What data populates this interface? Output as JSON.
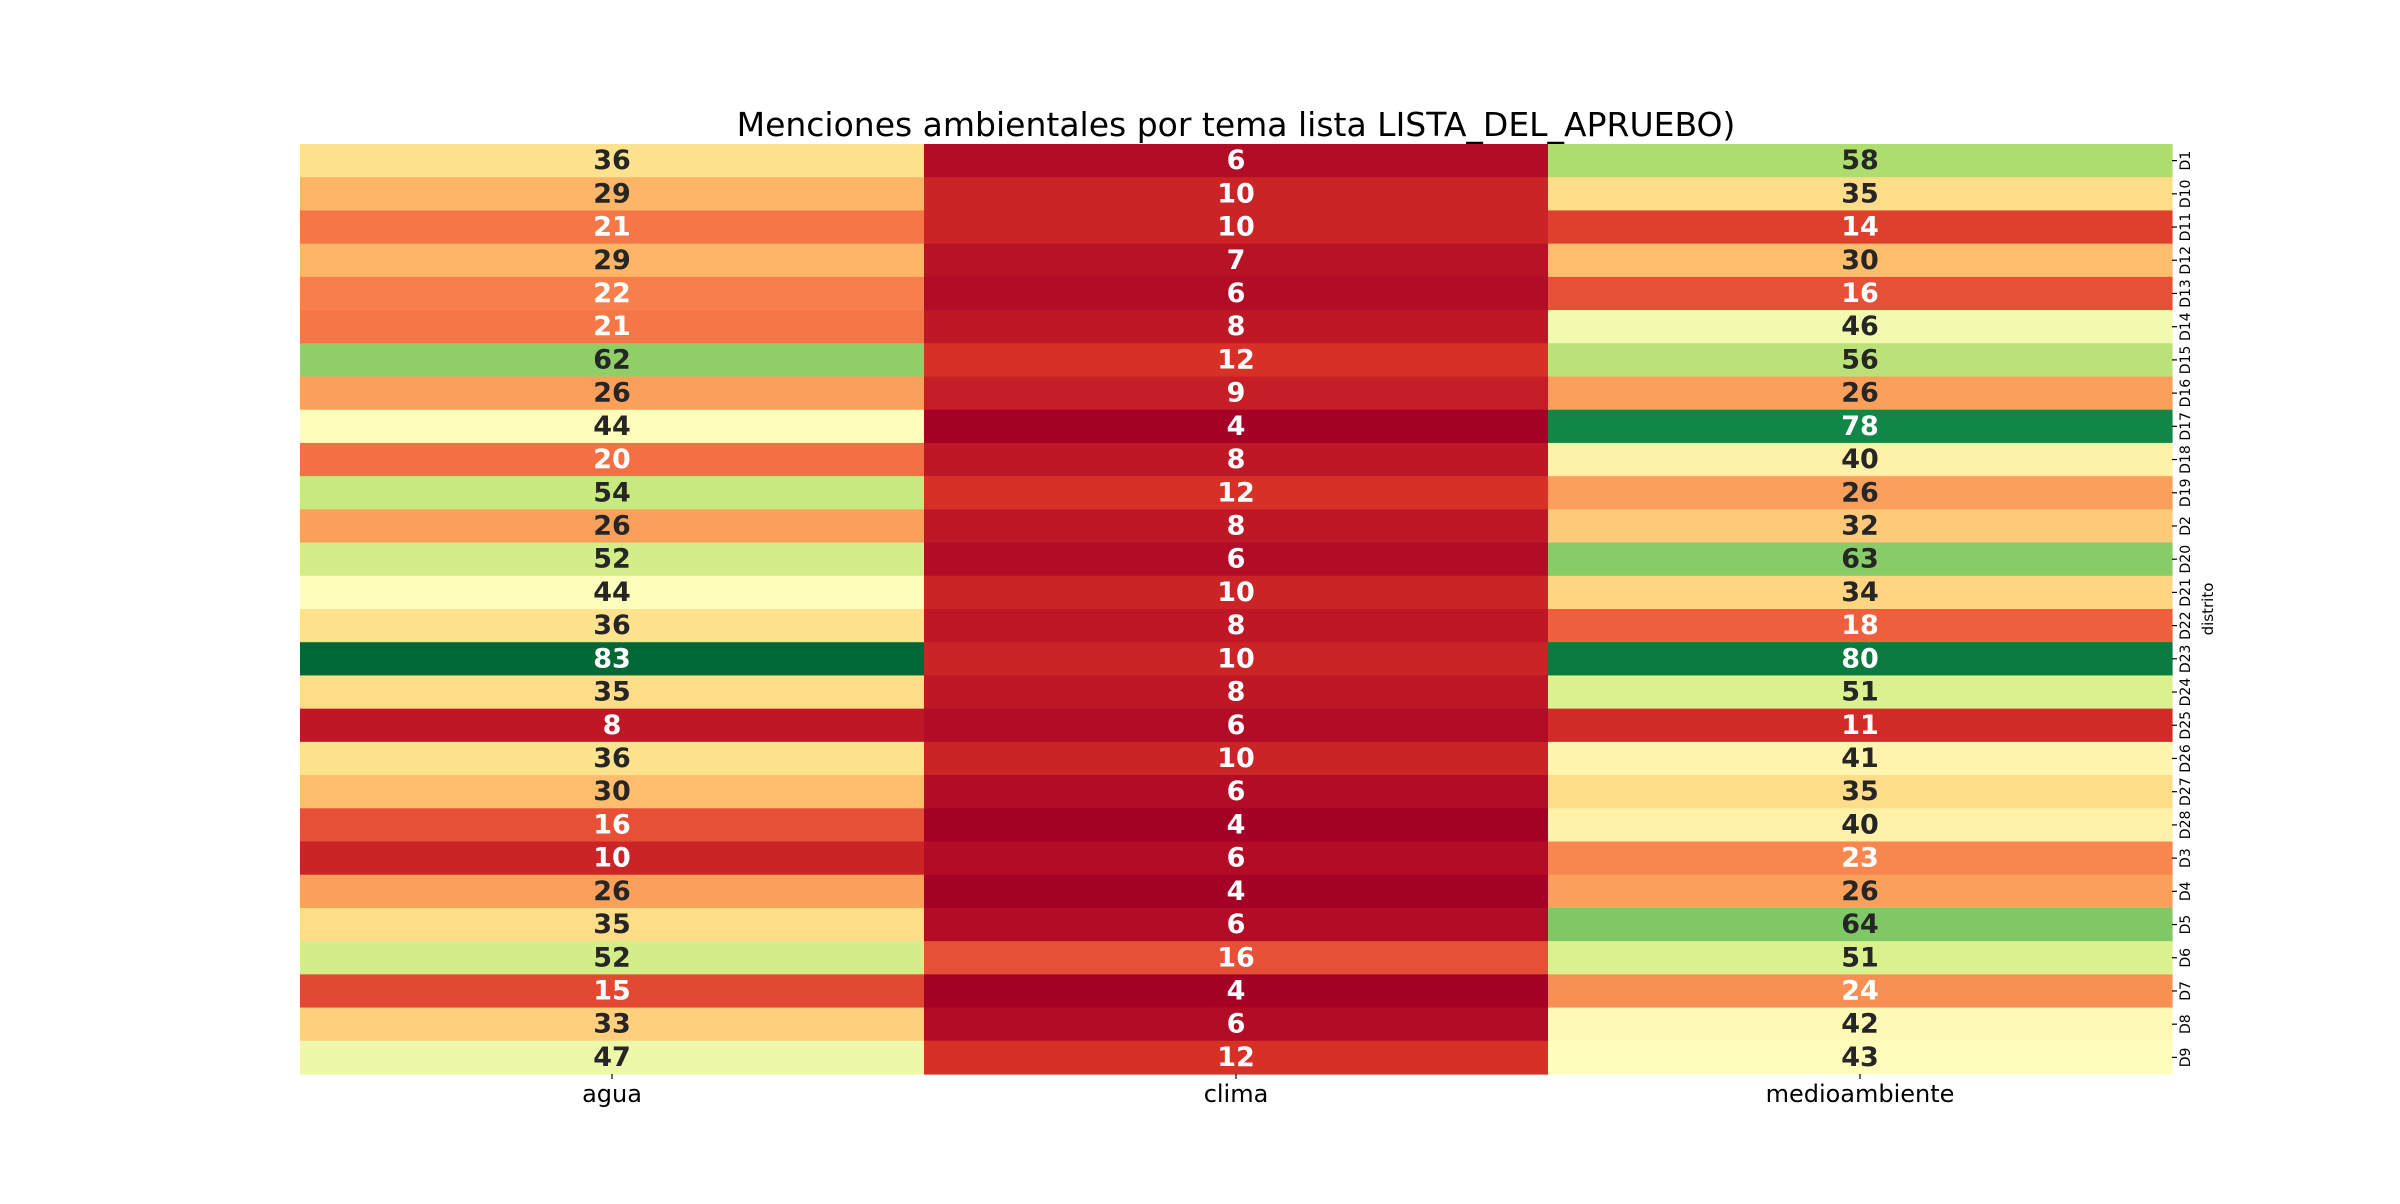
{
  "chart_data": {
    "type": "heatmap",
    "title": "Menciones ambientales por tema lista LISTA_DEL_APRUEBO)",
    "xlabel": "",
    "ylabel": "distrito",
    "x_categories": [
      "agua",
      "clima",
      "medioambiente"
    ],
    "y_categories": [
      "D1",
      "D10",
      "D11",
      "D12",
      "D13",
      "D14",
      "D15",
      "D16",
      "D17",
      "D18",
      "D19",
      "D2",
      "D20",
      "D21",
      "D22",
      "D23",
      "D24",
      "D25",
      "D26",
      "D27",
      "D28",
      "D3",
      "D4",
      "D5",
      "D6",
      "D7",
      "D8",
      "D9"
    ],
    "values": [
      [
        36,
        6,
        58
      ],
      [
        29,
        10,
        35
      ],
      [
        21,
        10,
        14
      ],
      [
        29,
        7,
        30
      ],
      [
        22,
        6,
        16
      ],
      [
        21,
        8,
        46
      ],
      [
        62,
        12,
        56
      ],
      [
        26,
        9,
        26
      ],
      [
        44,
        4,
        78
      ],
      [
        20,
        8,
        40
      ],
      [
        54,
        12,
        26
      ],
      [
        26,
        8,
        32
      ],
      [
        52,
        6,
        63
      ],
      [
        44,
        10,
        34
      ],
      [
        36,
        8,
        18
      ],
      [
        83,
        10,
        80
      ],
      [
        35,
        8,
        51
      ],
      [
        8,
        6,
        11
      ],
      [
        36,
        10,
        41
      ],
      [
        30,
        6,
        35
      ],
      [
        16,
        4,
        40
      ],
      [
        10,
        6,
        23
      ],
      [
        26,
        4,
        26
      ],
      [
        35,
        6,
        64
      ],
      [
        52,
        16,
        51
      ],
      [
        15,
        4,
        24
      ],
      [
        33,
        6,
        42
      ],
      [
        47,
        12,
        43
      ]
    ],
    "colormap": "RdYlGn",
    "value_range": [
      4,
      83
    ],
    "colorbar": false,
    "annotations": true,
    "y_axis_position": "right"
  }
}
